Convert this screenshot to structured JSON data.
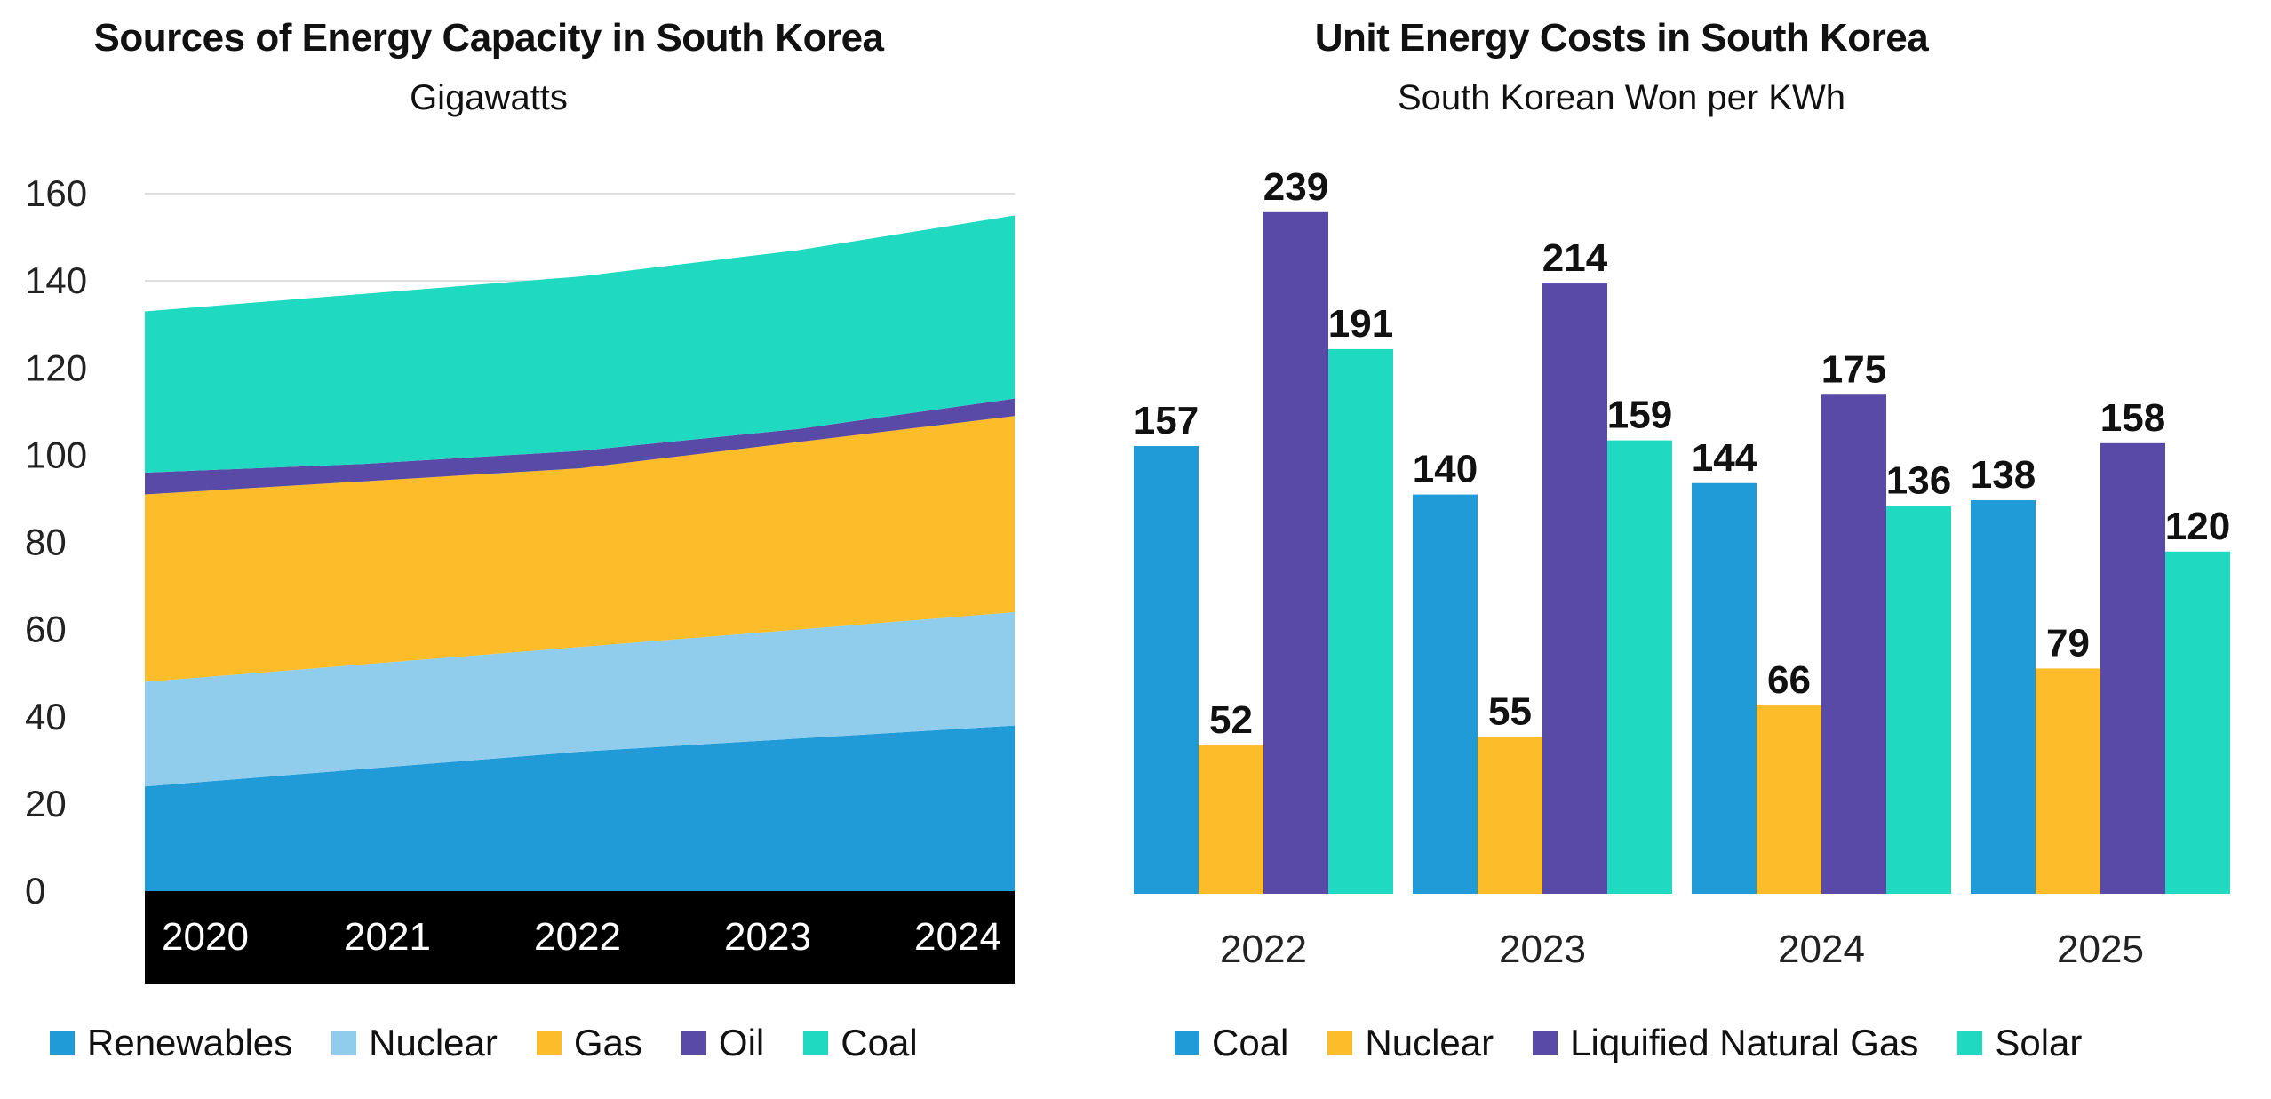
{
  "colors": {
    "renewables": "#219bd8",
    "nuclear": "#90cdec",
    "gas": "#fdbd2a",
    "oil": "#5a4aa7",
    "coal": "#1fd9c0",
    "lng": "#5a4aa7",
    "solar": "#1fd9c0",
    "bar_coal": "#219bd8",
    "bar_nuclear": "#fdbd2a"
  },
  "left": {
    "title": "Sources of Energy Capacity in South Korea",
    "subtitle": "Gigawatts",
    "legend": [
      "Renewables",
      "Nuclear",
      "Gas",
      "Oil",
      "Coal"
    ]
  },
  "right": {
    "title": "Unit Energy Costs in South Korea",
    "subtitle": "South Korean Won per KWh",
    "legend": [
      "Coal",
      "Nuclear",
      "Liquified Natural Gas",
      "Solar"
    ]
  },
  "chart_data": [
    {
      "type": "area",
      "stacked": true,
      "title": "Sources of Energy Capacity in South Korea",
      "subtitle": "Gigawatts",
      "x": [
        "2020",
        "2021",
        "2022",
        "2023",
        "2024"
      ],
      "ylim": [
        0,
        160
      ],
      "yticks": [
        "0",
        "20",
        "40",
        "60",
        "80",
        "100",
        "120",
        "140",
        "160"
      ],
      "grid": true,
      "legend_position": "bottom",
      "series": [
        {
          "name": "Renewables",
          "values": [
            24,
            28,
            32,
            35,
            38
          ]
        },
        {
          "name": "Nuclear",
          "values": [
            24,
            24,
            24,
            25,
            26
          ]
        },
        {
          "name": "Gas",
          "values": [
            43,
            42,
            41,
            43,
            45
          ]
        },
        {
          "name": "Oil",
          "values": [
            5,
            4,
            4,
            3,
            4
          ]
        },
        {
          "name": "Coal",
          "values": [
            37,
            39,
            40,
            41,
            42
          ]
        }
      ]
    },
    {
      "type": "bar",
      "title": "Unit Energy Costs in South Korea",
      "subtitle": "South Korean Won per KWh",
      "categories": [
        "2022",
        "2023",
        "2024",
        "2025"
      ],
      "ylim": [
        0,
        260
      ],
      "legend_position": "bottom",
      "series": [
        {
          "name": "Coal",
          "values": [
            157,
            140,
            144,
            138
          ],
          "labels": [
            "157",
            "140",
            "144",
            "138"
          ]
        },
        {
          "name": "Nuclear",
          "values": [
            52,
            55,
            66,
            79
          ],
          "labels": [
            "52",
            "55",
            "66",
            "79"
          ]
        },
        {
          "name": "Liquified Natural Gas",
          "values": [
            239,
            214,
            175,
            158
          ],
          "labels": [
            "239",
            "214",
            "175",
            "158"
          ]
        },
        {
          "name": "Solar",
          "values": [
            191,
            159,
            136,
            120
          ],
          "labels": [
            "191",
            "159",
            "136",
            "120"
          ]
        }
      ]
    }
  ]
}
